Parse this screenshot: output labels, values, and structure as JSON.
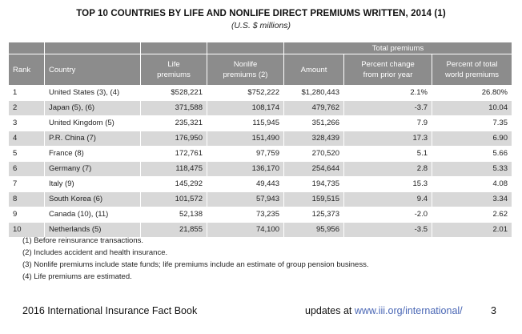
{
  "title": "TOP 10 COUNTRIES BY LIFE AND NONLIFE DIRECT PREMIUMS WRITTEN, 2014 (1)",
  "subtitle": "(U.S. $ millions)",
  "table": {
    "group_header": "Total premiums",
    "columns": {
      "rank": "Rank",
      "country": "Country",
      "life": [
        "Life",
        "premiums"
      ],
      "nonlife": [
        "Nonlife",
        "premiums (2)"
      ],
      "amount": "Amount",
      "pct_change": [
        "Percent change",
        "from prior year"
      ],
      "pct_world": [
        "Percent of total",
        "world premiums"
      ]
    },
    "rows": [
      {
        "rank": "1",
        "country": "United States (3), (4)",
        "life": "$528,221",
        "nonlife": "$752,222",
        "amount": "$1,280,443",
        "pct_change": "2.1%",
        "pct_world": "26.80%"
      },
      {
        "rank": "2",
        "country": "Japan (5), (6)",
        "life": "371,588",
        "nonlife": "108,174",
        "amount": "479,762",
        "pct_change": "-3.7",
        "pct_world": "10.04"
      },
      {
        "rank": "3",
        "country": "United Kingdom (5)",
        "life": "235,321",
        "nonlife": "115,945",
        "amount": "351,266",
        "pct_change": "7.9",
        "pct_world": "7.35"
      },
      {
        "rank": "4",
        "country": "P.R. China (7)",
        "life": "176,950",
        "nonlife": "151,490",
        "amount": "328,439",
        "pct_change": "17.3",
        "pct_world": "6.90"
      },
      {
        "rank": "5",
        "country": "France (8)",
        "life": "172,761",
        "nonlife": "97,759",
        "amount": "270,520",
        "pct_change": "5.1",
        "pct_world": "5.66"
      },
      {
        "rank": "6",
        "country": "Germany (7)",
        "life": "118,475",
        "nonlife": "136,170",
        "amount": "254,644",
        "pct_change": "2.8",
        "pct_world": "5.33"
      },
      {
        "rank": "7",
        "country": "Italy (9)",
        "life": "145,292",
        "nonlife": "49,443",
        "amount": "194,735",
        "pct_change": "15.3",
        "pct_world": "4.08"
      },
      {
        "rank": "8",
        "country": "South Korea (6)",
        "life": "101,572",
        "nonlife": "57,943",
        "amount": "159,515",
        "pct_change": "9.4",
        "pct_world": "3.34"
      },
      {
        "rank": "9",
        "country": "Canada (10), (11)",
        "life": "52,138",
        "nonlife": "73,235",
        "amount": "125,373",
        "pct_change": "-2.0",
        "pct_world": "2.62"
      },
      {
        "rank": "10",
        "country": "Netherlands (5)",
        "life": "21,855",
        "nonlife": "74,100",
        "amount": "95,956",
        "pct_change": "-3.5",
        "pct_world": "2.01"
      }
    ]
  },
  "notes": [
    "(1) Before reinsurance transactions.",
    "(2) Includes accident and health insurance.",
    "(3) Nonlife premiums include state funds; life premiums include an estimate of group pension business.",
    "(4) Life premiums are estimated."
  ],
  "footer": {
    "book": "2016 International Insurance Fact Book",
    "updates_prefix": "updates at ",
    "updates_link": "www.iii.org/international/",
    "page": "3"
  }
}
